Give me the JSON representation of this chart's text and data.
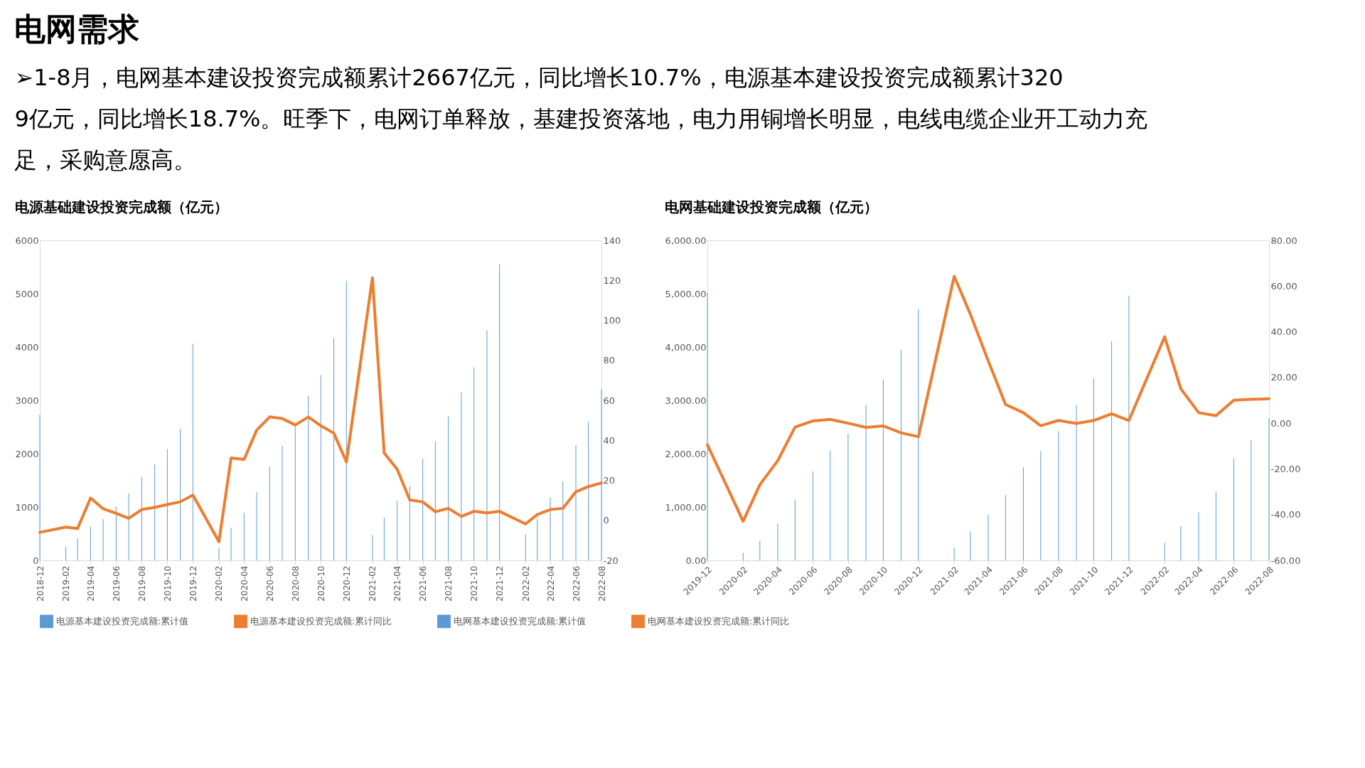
{
  "chart_data": [
    {
      "type": "bar",
      "title": "电源基础建设投资完成额（亿元）",
      "annotations": [
        "电网需求",
        "➢1-8月，电网基本建设投资完成额累计2667亿元，同比增长10.7%，电源基本建设投资完成额累计3209亿元，同比增长18.7%。旺季下，电网订单释放，基建投资落地，电力用铜增长明显，电线电缆企业开工动力充足，采购意愿高。"
      ],
      "x": [
        "2018-12",
        "2019-02",
        "2019-03",
        "2019-04",
        "2019-05",
        "2019-06",
        "2019-07",
        "2019-08",
        "2019-09",
        "2019-10",
        "2019-11",
        "2019-12",
        "2020-02",
        "2020-03",
        "2020-04",
        "2020-05",
        "2020-06",
        "2020-07",
        "2020-08",
        "2020-09",
        "2020-10",
        "2020-11",
        "2020-12",
        "2021-02",
        "2021-03",
        "2021-04",
        "2021-05",
        "2021-06",
        "2021-07",
        "2021-08",
        "2021-09",
        "2021-10",
        "2021-11",
        "2021-12",
        "2022-02",
        "2022-03",
        "2022-04",
        "2022-05",
        "2022-06",
        "2022-07",
        "2022-08"
      ],
      "series": [
        {
          "name": "电源基本建设投资完成额:累计值",
          "color": "#5b9bd5",
          "values": [
            2729,
            252,
            419,
            633,
            776,
            1014,
            1252,
            1562,
            1800,
            2086,
            2467,
            4062,
            229,
            610,
            895,
            1276,
            1752,
            2148,
            2514,
            3086,
            3476,
            4171,
            5243,
            476,
            800,
            1119,
            1386,
            1905,
            2229,
            2705,
            3148,
            3619,
            4314,
            5548,
            490,
            776,
            1181,
            1481,
            2157,
            2595,
            3209
          ]
        },
        {
          "name": "电源基本建设投资完成额:累计同比",
          "type": "line",
          "axis": "y2",
          "color": "#ed7d31",
          "values": [
            -6.0,
            -3.4,
            -4.1,
            11.2,
            5.8,
            3.5,
            1.0,
            5.4,
            6.5,
            7.9,
            9.3,
            12.6,
            -10.7,
            31.2,
            30.5,
            45.1,
            51.7,
            50.9,
            47.7,
            51.7,
            47.3,
            43.6,
            29.2,
            121.3,
            33.7,
            25.5,
            10.2,
            9.2,
            4.3,
            6.0,
            2.0,
            4.5,
            3.7,
            4.5,
            -1.8,
            2.9,
            5.4,
            6.0,
            14.3,
            16.9,
            18.7
          ]
        }
      ],
      "xlim": [
        "2018-12",
        "2022-08"
      ],
      "xticks": [
        "2018-12",
        "2019-02",
        "2019-04",
        "2019-06",
        "2019-08",
        "2019-10",
        "2019-12",
        "2020-02",
        "2020-04",
        "2020-06",
        "2020-08",
        "2020-10",
        "2020-12",
        "2021-02",
        "2021-04",
        "2021-06",
        "2021-08",
        "2021-10",
        "2021-12",
        "2022-02",
        "2022-04",
        "2022-06",
        "2022-08"
      ],
      "ylim": [
        0,
        6000
      ],
      "yticks": [
        0,
        1000,
        2000,
        3000,
        4000,
        5000,
        6000
      ],
      "y2lim": [
        -20,
        140
      ],
      "y2ticks": [
        -20,
        0,
        20,
        40,
        60,
        80,
        100,
        120,
        140
      ],
      "grid": false,
      "legend": "bottom"
    },
    {
      "type": "bar",
      "title": "电网基础建设投资完成额（亿元）",
      "x": [
        "2019-12",
        "2020-02",
        "2020-03",
        "2020-04",
        "2020-05",
        "2020-06",
        "2020-07",
        "2020-08",
        "2020-09",
        "2020-10",
        "2020-11",
        "2020-12",
        "2021-02",
        "2021-03",
        "2021-04",
        "2021-05",
        "2021-06",
        "2021-07",
        "2021-08",
        "2021-09",
        "2021-10",
        "2021-11",
        "2021-12",
        "2022-02",
        "2022-03",
        "2022-04",
        "2022-05",
        "2022-06",
        "2022-07",
        "2022-08"
      ],
      "series": [
        {
          "name": "电网基本建设投资完成额:累计值",
          "color": "#5b9bd5",
          "values": [
            5019,
            142,
            365,
            687,
            1136,
            1667,
            2060,
            2377,
            2912,
            3395,
            3944,
            4711,
            237,
            545,
            852,
            1222,
            1742,
            2050,
            2424,
            2912,
            3409,
            4110,
            4962,
            331,
            639,
            900,
            1278,
            1918,
            2249,
            2667
          ]
        },
        {
          "name": "电网基本建设投资完成额:累计同比",
          "type": "line",
          "axis": "y2",
          "color": "#ed7d31",
          "values": [
            -9.4,
            -42.9,
            -26.9,
            -16.4,
            -1.7,
            1.0,
            1.7,
            0.0,
            -1.8,
            -1.2,
            -4.2,
            -5.9,
            64.3,
            47.7,
            27.3,
            8.2,
            4.6,
            -1.1,
            1.2,
            -0.1,
            1.2,
            4.1,
            1.2,
            37.8,
            15.1,
            4.6,
            3.3,
            10.1,
            10.5,
            10.7
          ]
        }
      ],
      "xlim": [
        "2019-12",
        "2022-08"
      ],
      "xticks": [
        "2019-12",
        "2020-02",
        "2020-04",
        "2020-06",
        "2020-08",
        "2020-10",
        "2020-12",
        "2021-02",
        "2021-04",
        "2021-06",
        "2021-08",
        "2021-10",
        "2021-12",
        "2022-02",
        "2022-04",
        "2022-06",
        "2022-08"
      ],
      "ylim": [
        0,
        6000
      ],
      "yticks": [
        {
          "value": 0,
          "label": "0.00"
        },
        {
          "value": 1000,
          "label": "1,000.00"
        },
        {
          "value": 2000,
          "label": "2,000.00"
        },
        {
          "value": 3000,
          "label": "3,000.00"
        },
        {
          "value": 4000,
          "label": "4,000.00"
        },
        {
          "value": 5000,
          "label": "5,000.00"
        },
        {
          "value": 6000,
          "label": "6,000.00"
        }
      ],
      "y2lim": [
        -60,
        80
      ],
      "y2ticks": [
        {
          "value": -60,
          "label": "-60.00"
        },
        {
          "value": -40,
          "label": "-40.00"
        },
        {
          "value": -20,
          "label": "-20.00"
        },
        {
          "value": 0,
          "label": "0.00"
        },
        {
          "value": 20,
          "label": "20.00"
        },
        {
          "value": 40,
          "label": "40.00"
        },
        {
          "value": 60,
          "label": "60.00"
        },
        {
          "value": 80,
          "label": "80.00"
        }
      ],
      "grid": false,
      "legend": "bottom"
    }
  ]
}
